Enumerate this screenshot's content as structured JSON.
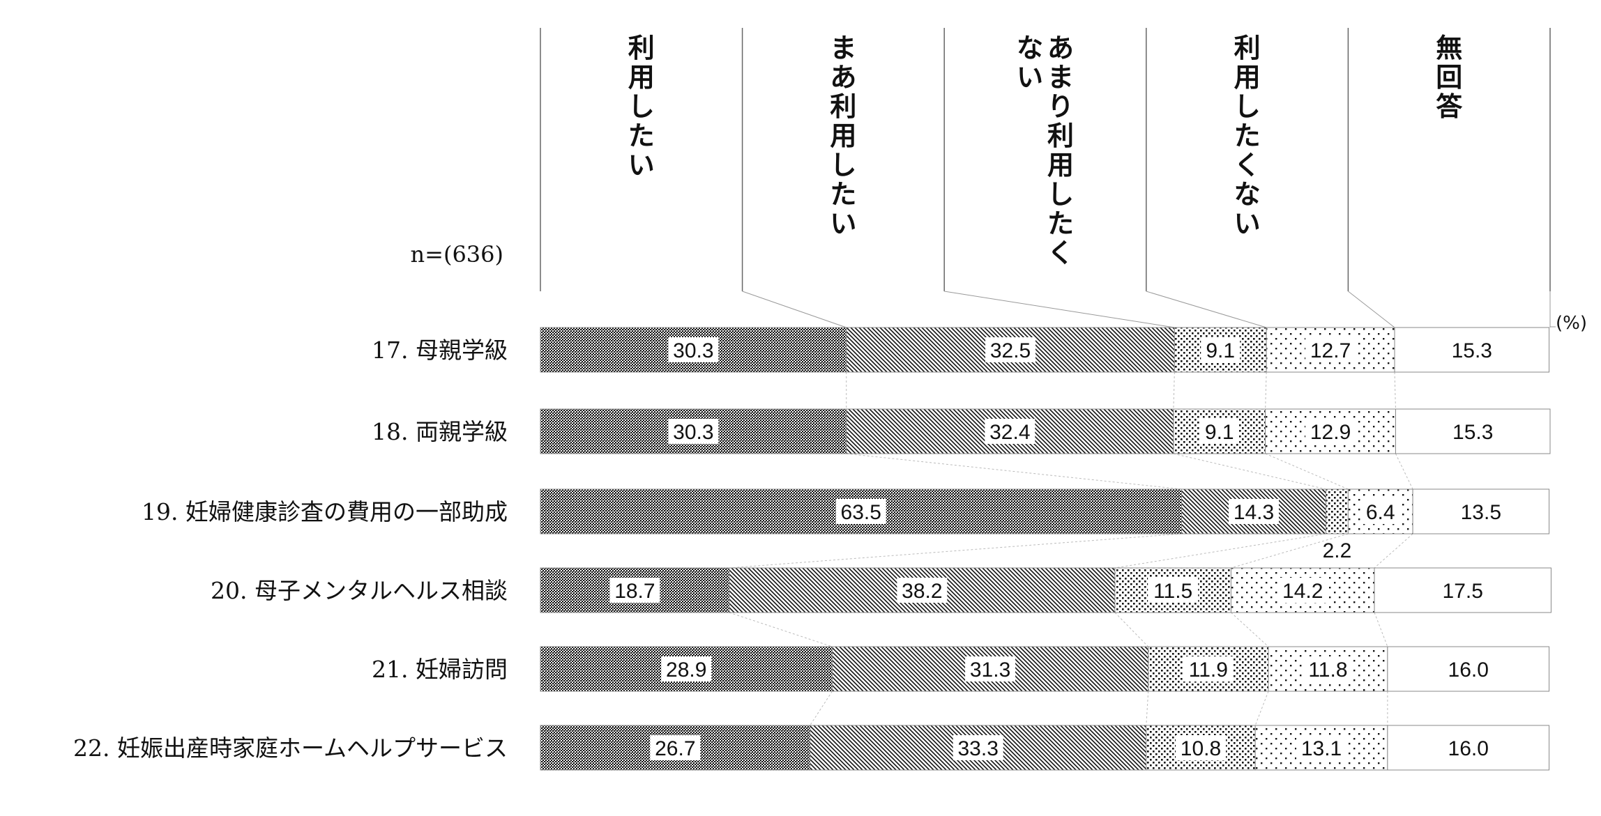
{
  "chart_data": {
    "type": "bar",
    "stacked": true,
    "orientation": "horizontal",
    "n_label": "n=(636)",
    "unit_label": "(%)",
    "series": [
      {
        "name": "利用したい",
        "head_lines": [
          "利用したい"
        ],
        "pattern": "dense-dots"
      },
      {
        "name": "まあ利用したい",
        "head_lines": [
          "まあ利用したい"
        ],
        "pattern": "diagonal"
      },
      {
        "name": "あまり利用したくない",
        "head_lines": [
          "あまり利用したく",
          "ない"
        ],
        "pattern": "medium-dots"
      },
      {
        "name": "利用したくない",
        "head_lines": [
          "利用したくない"
        ],
        "pattern": "sparse-dots"
      },
      {
        "name": "無回答",
        "head_lines": [
          "無回答"
        ],
        "pattern": "blank"
      }
    ],
    "categories": [
      "17. 母親学級",
      "18. 両親学級",
      "19. 妊婦健康診査の費用の一部助成",
      "20. 母子メンタルヘルス相談",
      "21. 妊婦訪問",
      "22. 妊娠出産時家庭ホームヘルプサービス"
    ],
    "values": [
      [
        30.3,
        32.5,
        9.1,
        12.7,
        15.3
      ],
      [
        30.3,
        32.4,
        9.1,
        12.9,
        15.3
      ],
      [
        63.5,
        14.3,
        2.2,
        6.4,
        13.5
      ],
      [
        18.7,
        38.2,
        11.5,
        14.2,
        17.5
      ],
      [
        28.9,
        31.3,
        11.9,
        11.8,
        16.0
      ],
      [
        26.7,
        33.3,
        10.8,
        13.1,
        16.0
      ]
    ],
    "labels": [
      [
        "30.3",
        "32.5",
        "9.1",
        "12.7",
        "15.3"
      ],
      [
        "30.3",
        "32.4",
        "9.1",
        "12.9",
        "15.3"
      ],
      [
        "63.5",
        "14.3",
        "2.2",
        "6.4",
        "13.5"
      ],
      [
        "18.7",
        "38.2",
        "11.5",
        "14.2",
        "17.5"
      ],
      [
        "28.9",
        "31.3",
        "11.9",
        "11.8",
        "16.0"
      ],
      [
        "26.7",
        "33.3",
        "10.8",
        "13.1",
        "16.0"
      ]
    ],
    "xlim": [
      0,
      100
    ]
  }
}
